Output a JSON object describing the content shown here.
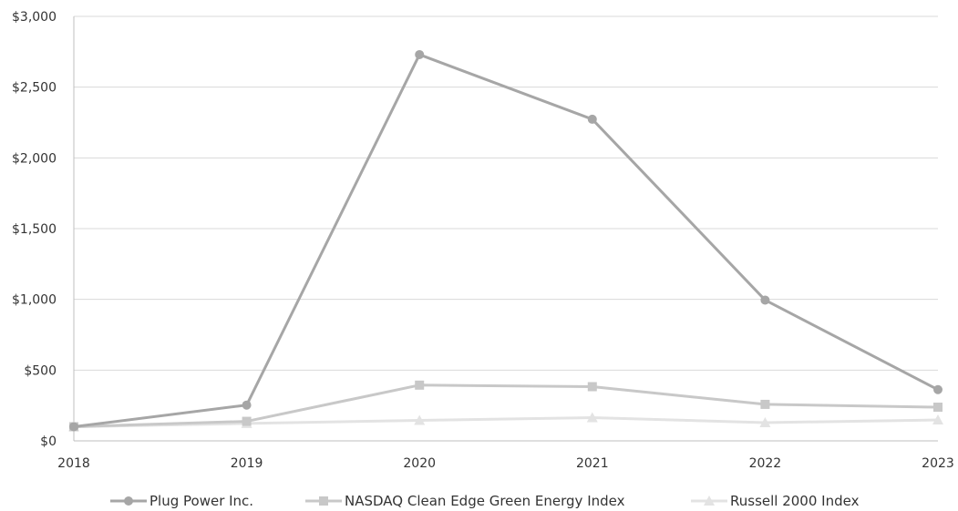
{
  "chart_data": {
    "type": "line",
    "title": "",
    "xlabel": "",
    "ylabel": "",
    "categories": [
      "2018",
      "2019",
      "2020",
      "2021",
      "2022",
      "2023"
    ],
    "ylim": [
      0,
      3000
    ],
    "y_ticks": [
      0,
      500,
      1000,
      1500,
      2000,
      2500,
      3000
    ],
    "y_tick_labels": [
      "$0",
      "$500",
      "$1,000",
      "$1,500",
      "$2,000",
      "$2,500",
      "$3,000"
    ],
    "grid": true,
    "legend_position": "bottom",
    "series": [
      {
        "name": "Plug Power Inc.",
        "values": [
          100,
          253,
          2730,
          2273,
          995,
          362
        ],
        "color": "#a6a6a6",
        "marker": "circle"
      },
      {
        "name": "NASDAQ Clean Edge Green Energy Index",
        "values": [
          100,
          138,
          394,
          383,
          258,
          238
        ],
        "color": "#c8c8c8",
        "marker": "square"
      },
      {
        "name": "Russell 2000 Index",
        "values": [
          100,
          123,
          145,
          164,
          129,
          148
        ],
        "color": "#e3e3e3",
        "marker": "triangle"
      }
    ]
  }
}
